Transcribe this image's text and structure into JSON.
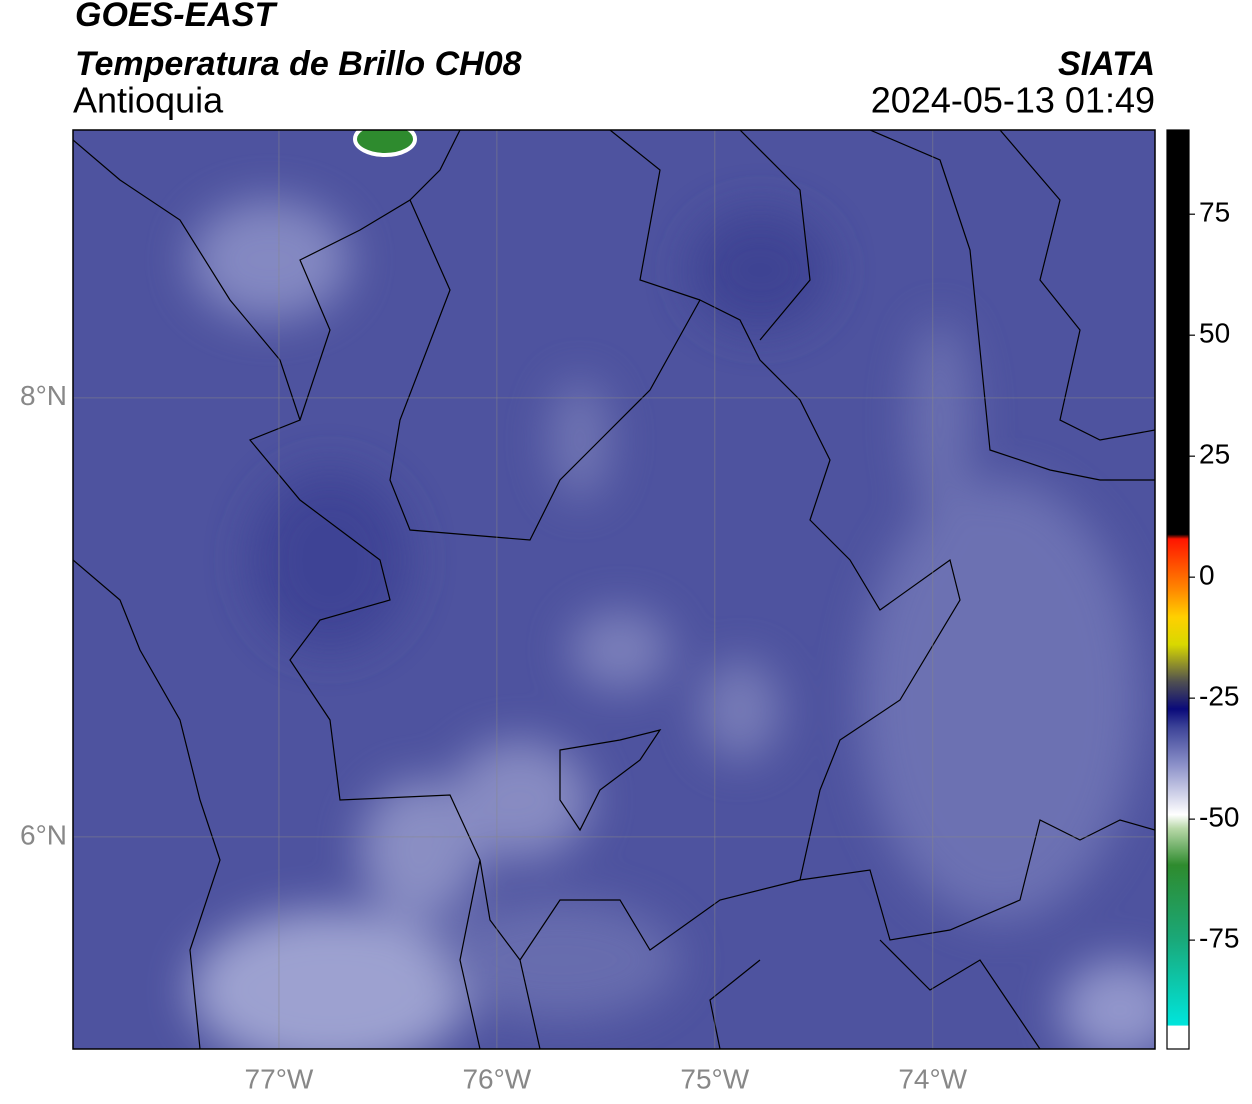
{
  "header": {
    "title": "GOES-EAST",
    "subtitle": "Temperatura de Brillo CH08",
    "region": "Antioquia",
    "source": "SIATA",
    "datetime": "2024-05-13 01:49"
  },
  "map": {
    "xlim": [
      -77.945,
      -72.98
    ],
    "ylim": [
      5.034,
      9.22
    ],
    "xticks": [
      {
        "value": -77,
        "label": "77°W"
      },
      {
        "value": -76,
        "label": "76°W"
      },
      {
        "value": -75,
        "label": "75°W"
      },
      {
        "value": -74,
        "label": "74°W"
      }
    ],
    "yticks": [
      {
        "value": 8,
        "label": "8°N"
      },
      {
        "value": 6,
        "label": "6°N"
      }
    ],
    "grid": true
  },
  "colorbar": {
    "lim": [
      -97.5,
      92.4
    ],
    "ticks": [
      75,
      50,
      25,
      0,
      -25,
      -50,
      -75
    ]
  }
}
